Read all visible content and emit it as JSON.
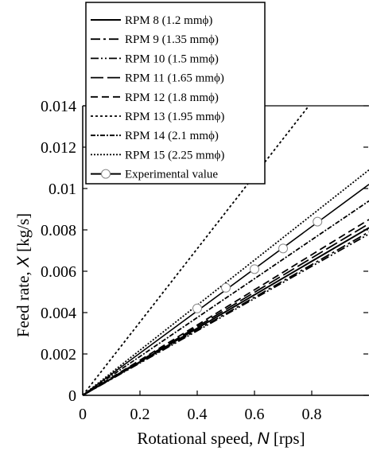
{
  "chart_data": {
    "type": "line",
    "xlabel_parts": [
      "Rotational speed, ",
      "N",
      " [rps]"
    ],
    "ylabel_parts": [
      "Feed rate, ",
      "X",
      " [kg/s]"
    ],
    "xlim": [
      0,
      1.0
    ],
    "ylim": [
      0,
      0.014
    ],
    "x_ticks": [
      0,
      0.2,
      0.4,
      0.6,
      0.8
    ],
    "x_tick_labels": [
      "0",
      "0.2",
      "0.4",
      "0.6",
      "0.8"
    ],
    "y_ticks": [
      0,
      0.002,
      0.004,
      0.006,
      0.008,
      0.01,
      0.012,
      0.014
    ],
    "y_tick_labels": [
      "0",
      "0.002",
      "0.004",
      "0.006",
      "0.008",
      "0.01",
      "0.012",
      "0.014"
    ],
    "grid": false,
    "legend_position": "top-left",
    "series": [
      {
        "name": "RPM 8 (1.2 mmϕ)",
        "x": [
          0,
          1.0
        ],
        "y": [
          0,
          0.0081
        ],
        "dash": "solid"
      },
      {
        "name": "RPM 9 (1.35 mmϕ)",
        "x": [
          0,
          1.0
        ],
        "y": [
          0,
          0.0079
        ],
        "dash": "dashdot"
      },
      {
        "name": "RPM 10 (1.5 mmϕ)",
        "x": [
          0,
          1.0
        ],
        "y": [
          0,
          0.0078
        ],
        "dash": "dashdotdot"
      },
      {
        "name": "RPM 11 (1.65 mmϕ)",
        "x": [
          0,
          1.0
        ],
        "y": [
          0,
          0.0083
        ],
        "dash": "longdash"
      },
      {
        "name": "RPM 12 (1.8 mmϕ)",
        "x": [
          0,
          1.0
        ],
        "y": [
          0,
          0.0085
        ],
        "dash": "dash"
      },
      {
        "name": "RPM 13 (1.95 mmϕ)",
        "x": [
          0,
          0.79
        ],
        "y": [
          0,
          0.014
        ],
        "dash": "dot"
      },
      {
        "name": "RPM 14 (2.1 mmϕ)",
        "x": [
          0,
          1.0
        ],
        "y": [
          0,
          0.0094
        ],
        "dash": "dashdense"
      },
      {
        "name": "RPM 15 (2.25 mmϕ)",
        "x": [
          0,
          1.0
        ],
        "y": [
          0,
          0.0109
        ],
        "dash": "dotdense"
      }
    ],
    "experimental": {
      "name": "Experimental value",
      "points": [
        [
          0.4,
          0.0042
        ],
        [
          0.5,
          0.0052
        ],
        [
          0.6,
          0.0061
        ],
        [
          0.7,
          0.0071
        ],
        [
          0.82,
          0.0084
        ]
      ],
      "fit_x": [
        0,
        1.0
      ],
      "fit_y": [
        0,
        0.0102
      ]
    }
  }
}
